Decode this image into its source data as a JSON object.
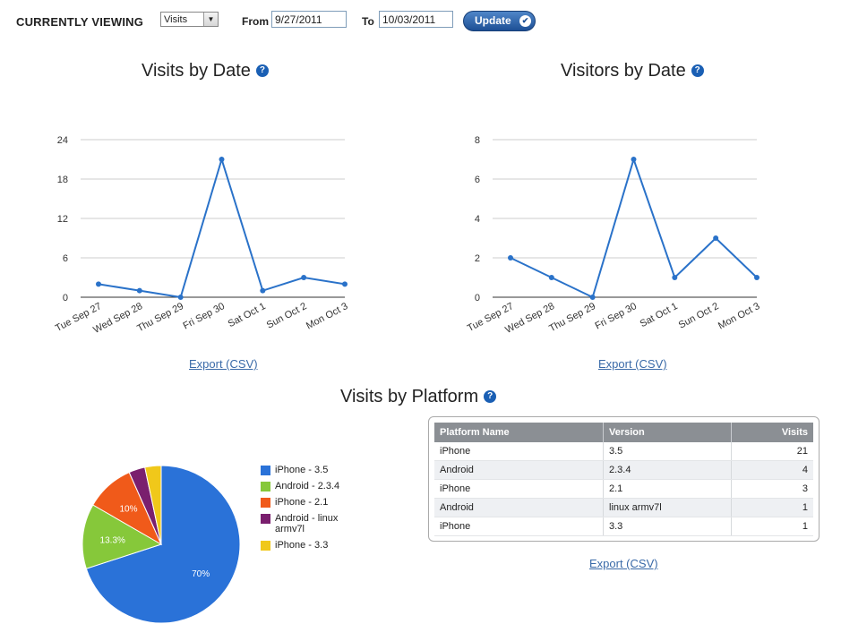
{
  "header": {
    "currently_viewing_label": "CURRENTLY VIEWING",
    "view_select": {
      "selected": "Visits"
    },
    "from_label": "From",
    "from_value": "9/27/2011",
    "to_label": "To",
    "to_value": "10/03/2011",
    "update_button": "Update"
  },
  "visits_chart": {
    "title": "Visits by Date",
    "export_label": "Export (CSV)"
  },
  "visitors_chart": {
    "title": "Visitors by Date",
    "export_label": "Export (CSV)"
  },
  "platform": {
    "title": "Visits by Platform",
    "export_label": "Export (CSV)",
    "table": {
      "headers": [
        "Platform Name",
        "Version",
        "Visits"
      ],
      "rows": [
        [
          "iPhone",
          "3.5",
          "21"
        ],
        [
          "Android",
          "2.3.4",
          "4"
        ],
        [
          "iPhone",
          "2.1",
          "3"
        ],
        [
          "Android",
          "linux armv7l",
          "1"
        ],
        [
          "iPhone",
          "3.3",
          "1"
        ]
      ]
    }
  },
  "colors": {
    "line": "#2a72c9",
    "grid": "#cccccc",
    "link": "#3a6aa8"
  },
  "chart_data": [
    {
      "type": "line",
      "title": "Visits by Date",
      "categories": [
        "Tue Sep 27",
        "Wed Sep 28",
        "Thu Sep 29",
        "Fri Sep 30",
        "Sat Oct 1",
        "Sun Oct 2",
        "Mon Oct 3"
      ],
      "values": [
        2,
        1,
        0,
        21,
        1,
        3,
        2
      ],
      "yticks": [
        0,
        6,
        12,
        18,
        24
      ],
      "ylim": [
        0,
        24
      ],
      "color": "#2a72c9",
      "grid": true
    },
    {
      "type": "line",
      "title": "Visitors by Date",
      "categories": [
        "Tue Sep 27",
        "Wed Sep 28",
        "Thu Sep 29",
        "Fri Sep 30",
        "Sat Oct 1",
        "Sun Oct 2",
        "Mon Oct 3"
      ],
      "values": [
        2,
        1,
        0,
        7,
        1,
        3,
        1
      ],
      "yticks": [
        0,
        2,
        4,
        6,
        8
      ],
      "ylim": [
        0,
        8
      ],
      "color": "#2a72c9",
      "grid": true
    },
    {
      "type": "pie",
      "title": "Visits by Platform",
      "slices": [
        {
          "label": "iPhone - 3.5",
          "value": 21,
          "percent_label": "70%",
          "color": "#2a72d8"
        },
        {
          "label": "Android - 2.3.4",
          "value": 4,
          "percent_label": "13.3%",
          "color": "#86c83a"
        },
        {
          "label": "iPhone - 2.1",
          "value": 3,
          "percent_label": "10%",
          "color": "#f05a1a"
        },
        {
          "label": "Android - linux armv7l",
          "value": 1,
          "percent_label": "",
          "color": "#7a1f6e"
        },
        {
          "label": "iPhone - 3.3",
          "value": 1,
          "percent_label": "",
          "color": "#f0c81a"
        }
      ],
      "legend": "right"
    }
  ]
}
